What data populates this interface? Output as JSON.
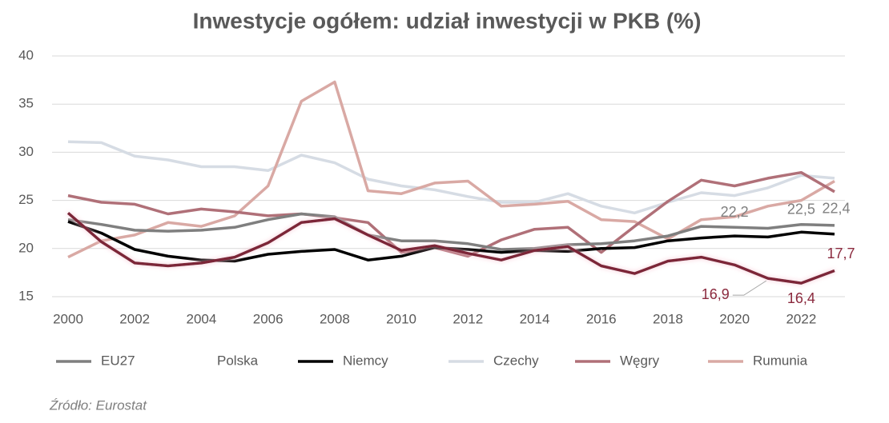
{
  "chart_data": {
    "type": "line",
    "title": "Inwestycje ogółem: udział inwestycji w PKB (%)",
    "source": "Źródło: Eurostat",
    "x": [
      2000,
      2001,
      2002,
      2003,
      2004,
      2005,
      2006,
      2007,
      2008,
      2009,
      2010,
      2011,
      2012,
      2013,
      2014,
      2015,
      2016,
      2017,
      2018,
      2019,
      2020,
      2021,
      2022,
      2023
    ],
    "xlim": [
      2000,
      2023
    ],
    "xticks": [
      2000,
      2002,
      2004,
      2006,
      2008,
      2010,
      2012,
      2014,
      2016,
      2018,
      2020,
      2022
    ],
    "ylim": [
      15,
      40
    ],
    "yticks": [
      15,
      20,
      25,
      30,
      35,
      40
    ],
    "grid": true,
    "legend": "bottom",
    "series": [
      {
        "name": "EU27",
        "color": "#7f7f7f",
        "values": [
          23.0,
          22.5,
          21.9,
          21.8,
          21.9,
          22.2,
          23.0,
          23.6,
          23.3,
          21.4,
          20.8,
          20.8,
          20.5,
          19.9,
          20.0,
          20.4,
          20.5,
          20.8,
          21.3,
          22.3,
          22.2,
          22.1,
          22.5,
          22.4
        ],
        "value_labels": [
          null,
          null,
          null,
          null,
          null,
          null,
          null,
          null,
          null,
          null,
          null,
          null,
          null,
          null,
          null,
          null,
          null,
          null,
          null,
          null,
          "22,2",
          null,
          "22,5",
          "22,4"
        ]
      },
      {
        "name": "Polska",
        "color": "#7b2638",
        "values": [
          23.7,
          20.7,
          18.5,
          18.2,
          18.5,
          19.1,
          20.6,
          22.7,
          23.1,
          21.4,
          19.8,
          20.3,
          19.5,
          18.8,
          19.8,
          20.2,
          18.2,
          17.4,
          18.7,
          19.1,
          18.3,
          16.9,
          16.4,
          17.7
        ],
        "value_labels": [
          null,
          null,
          null,
          null,
          null,
          null,
          null,
          null,
          null,
          null,
          null,
          null,
          null,
          null,
          null,
          null,
          null,
          null,
          null,
          null,
          null,
          "16,9",
          "16,4",
          "17,7"
        ]
      },
      {
        "name": "Niemcy",
        "color": "#000000",
        "values": [
          22.8,
          21.6,
          19.9,
          19.2,
          18.8,
          18.7,
          19.4,
          19.7,
          19.9,
          18.8,
          19.2,
          20.1,
          19.9,
          19.6,
          19.8,
          19.7,
          20.0,
          20.1,
          20.8,
          21.1,
          21.3,
          21.2,
          21.7,
          21.5
        ]
      },
      {
        "name": "Czechy",
        "color": "#d6dce4",
        "values": [
          31.1,
          31.0,
          29.6,
          29.2,
          28.5,
          28.5,
          28.1,
          29.7,
          28.9,
          27.2,
          26.5,
          26.1,
          25.4,
          24.8,
          24.8,
          25.7,
          24.4,
          23.7,
          24.8,
          25.8,
          25.5,
          26.3,
          27.6,
          27.3
        ]
      },
      {
        "name": "Węgry",
        "color": "#b07078",
        "values": [
          25.5,
          24.8,
          24.6,
          23.6,
          24.1,
          23.8,
          23.4,
          23.6,
          23.2,
          22.7,
          19.6,
          20.1,
          19.2,
          20.9,
          22.0,
          22.2,
          19.6,
          22.3,
          24.9,
          27.1,
          26.5,
          27.3,
          27.9,
          25.9
        ]
      },
      {
        "name": "Rumunia",
        "color": "#d9a9a4",
        "values": [
          19.1,
          20.8,
          21.4,
          22.7,
          22.3,
          23.4,
          26.5,
          35.3,
          37.3,
          26.0,
          25.7,
          26.8,
          27.0,
          24.4,
          24.6,
          24.9,
          23.0,
          22.8,
          21.0,
          23.0,
          23.3,
          24.4,
          25.0,
          27.0
        ]
      }
    ]
  }
}
